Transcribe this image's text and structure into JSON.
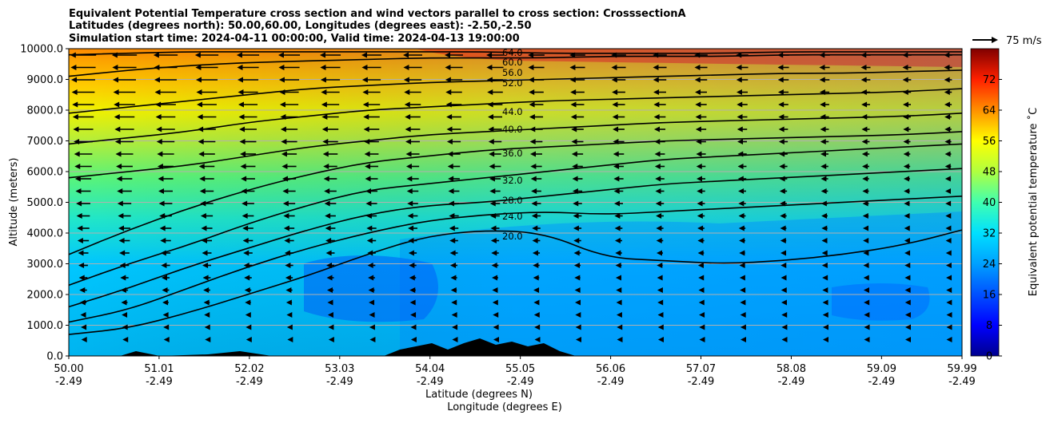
{
  "chart_data": {
    "type": "contour",
    "title_lines": [
      "Equivalent Potential Temperature cross section and wind vectors parallel to cross section: CrosssectionA",
      "Latitudes (degrees north): 50.00,60.00, Longitudes (degrees east): -2.50,-2.50",
      "Simulation start time: 2024-04-11 00:00:00, Valid time: 2024-04-13 19:00:00"
    ],
    "ylabel": "Altitude (meters)",
    "xlabel_line1": "Latitude (degrees N)",
    "xlabel_line2": "Longitude (degrees E)",
    "ylim": [
      0,
      10000
    ],
    "xlim": [
      50.0,
      59.99
    ],
    "yticks": [
      "0.0",
      "1000.0",
      "2000.0",
      "3000.0",
      "4000.0",
      "5000.0",
      "6000.0",
      "7000.0",
      "8000.0",
      "9000.0",
      "10000.0"
    ],
    "ytick_values": [
      0,
      1000,
      2000,
      3000,
      4000,
      5000,
      6000,
      7000,
      8000,
      9000,
      10000
    ],
    "xticks": [
      {
        "lat": "50.00",
        "lon": "-2.49"
      },
      {
        "lat": "51.01",
        "lon": "-2.49"
      },
      {
        "lat": "52.02",
        "lon": "-2.49"
      },
      {
        "lat": "53.03",
        "lon": "-2.49"
      },
      {
        "lat": "54.04",
        "lon": "-2.49"
      },
      {
        "lat": "55.05",
        "lon": "-2.49"
      },
      {
        "lat": "56.06",
        "lon": "-2.49"
      },
      {
        "lat": "57.07",
        "lon": "-2.49"
      },
      {
        "lat": "58.08",
        "lon": "-2.49"
      },
      {
        "lat": "59.09",
        "lon": "-2.49"
      },
      {
        "lat": "59.99",
        "lon": "-2.49"
      }
    ],
    "xtick_values": [
      50.0,
      51.01,
      52.02,
      53.03,
      54.04,
      55.05,
      56.06,
      57.07,
      58.08,
      59.09,
      59.99
    ],
    "grid": "horizontal",
    "colorbar": {
      "label": "Equivalent potential temperature ˚C",
      "range": [
        0,
        80
      ],
      "ticks": [
        "0",
        "8",
        "16",
        "24",
        "32",
        "40",
        "48",
        "56",
        "64",
        "72"
      ],
      "tick_values": [
        0,
        8,
        16,
        24,
        32,
        40,
        48,
        56,
        64,
        72
      ]
    },
    "quiver_key": "75 m/s",
    "contour_labels": [
      "64.0",
      "60.0",
      "56.0",
      "52.0",
      "44.0",
      "40.0",
      "36.0",
      "32.0",
      "28.0",
      "24.0",
      "20.0"
    ],
    "contour_levels": [
      {
        "value": 20,
        "heights": [
          700,
          900,
          1400,
          2000,
          2600,
          3300,
          3900,
          4100,
          4000,
          3200,
          3100,
          3000,
          3100,
          3300,
          3600,
          4100
        ]
      },
      {
        "value": 24,
        "heights": [
          1100,
          1500,
          2200,
          2900,
          3500,
          4000,
          4400,
          4600,
          4700,
          4600,
          4700,
          4800,
          4900,
          5000,
          5100,
          5200
        ]
      },
      {
        "value": 28,
        "heights": [
          1600,
          2200,
          2900,
          3500,
          4100,
          4600,
          4900,
          5000,
          5200,
          5400,
          5600,
          5700,
          5800,
          5900,
          6000,
          6100
        ]
      },
      {
        "value": 32,
        "heights": [
          2300,
          3000,
          3600,
          4300,
          4900,
          5400,
          5600,
          5800,
          6000,
          6200,
          6400,
          6500,
          6600,
          6700,
          6800,
          6900
        ]
      },
      {
        "value": 36,
        "heights": [
          3300,
          4100,
          4800,
          5400,
          5900,
          6300,
          6500,
          6700,
          6800,
          6900,
          7000,
          7050,
          7100,
          7150,
          7200,
          7300
        ]
      },
      {
        "value": 40,
        "heights": [
          5800,
          6000,
          6200,
          6500,
          6800,
          7000,
          7200,
          7300,
          7400,
          7500,
          7600,
          7650,
          7700,
          7750,
          7800,
          7900
        ]
      },
      {
        "value": 44,
        "heights": [
          6900,
          7100,
          7300,
          7600,
          7800,
          8000,
          8100,
          8200,
          8300,
          8350,
          8400,
          8450,
          8500,
          8550,
          8600,
          8700
        ]
      },
      {
        "value": 52,
        "heights": [
          7900,
          8100,
          8300,
          8500,
          8700,
          8800,
          8900,
          8950,
          9000,
          9050,
          9100,
          9150,
          9200,
          9200,
          9250,
          9300
        ]
      },
      {
        "value": 56,
        "heights": [
          9100,
          9300,
          9450,
          9550,
          9600,
          9650,
          9700,
          9700,
          9700,
          9750,
          9750,
          9750,
          9800,
          9800,
          9800,
          9800
        ]
      },
      {
        "value": 60,
        "heights": [
          9800,
          9850,
          9900,
          9900,
          9900,
          9900,
          9900,
          9900,
          9850,
          9850,
          9850,
          9850,
          9900,
          9900,
          9900,
          9900
        ]
      }
    ]
  }
}
